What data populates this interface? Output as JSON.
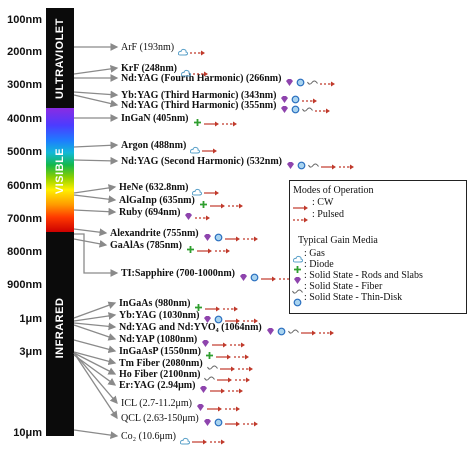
{
  "wavelength_axis": [
    "100nm",
    "200nm",
    "300nm",
    "400nm",
    "500nm",
    "600nm",
    "700nm",
    "800nm",
    "900nm",
    "1μm",
    "3μm",
    "10μm"
  ],
  "bands": {
    "ultraviolet": "ULTRAVIOLET",
    "visible": "VISIBLE",
    "infrared": "INFRARED"
  },
  "lasers": [
    {
      "label": "ArF (193nm)",
      "gain": [
        "gas"
      ],
      "modes": [
        "pulsed"
      ]
    },
    {
      "label": "KrF (248nm)",
      "gain": [
        "gas"
      ],
      "modes": [
        "pulsed"
      ]
    },
    {
      "label": "Nd:YAG (Fourth Harmonic) (266nm)",
      "gain": [
        "rods",
        "thindisk",
        "fiber"
      ],
      "modes": [
        "pulsed"
      ]
    },
    {
      "label": "Yb:YAG (Third Harmonic) (343nm)",
      "gain": [
        "rods",
        "thindisk"
      ],
      "modes": [
        "pulsed"
      ]
    },
    {
      "label": "Nd:YAG (Third Harmonic) (355nm)",
      "gain": [
        "rods",
        "thindisk",
        "fiber"
      ],
      "modes": [
        "pulsed"
      ]
    },
    {
      "label": "InGaN (405nm)",
      "gain": [
        "diode"
      ],
      "modes": [
        "cw",
        "pulsed"
      ]
    },
    {
      "label": "Argon (488nm)",
      "gain": [
        "gas"
      ],
      "modes": [
        "cw"
      ]
    },
    {
      "label": "Nd:YAG (Second Harmonic) (532nm)",
      "gain": [
        "rods",
        "thindisk",
        "fiber"
      ],
      "modes": [
        "cw",
        "pulsed"
      ]
    },
    {
      "label": "HeNe (632.8nm)",
      "gain": [
        "gas"
      ],
      "modes": [
        "cw"
      ]
    },
    {
      "label": "AlGaInp (635nm)",
      "gain": [
        "diode"
      ],
      "modes": [
        "cw",
        "pulsed"
      ]
    },
    {
      "label": "Ruby (694nm)",
      "gain": [
        "rods"
      ],
      "modes": [
        "pulsed"
      ]
    },
    {
      "label": "Alexandrite (755nm)",
      "gain": [
        "rods",
        "thindisk"
      ],
      "modes": [
        "cw",
        "pulsed"
      ]
    },
    {
      "label": "GaAlAs (785nm)",
      "gain": [
        "diode"
      ],
      "modes": [
        "cw",
        "pulsed"
      ]
    },
    {
      "label": "TI:Sapphire (700-1000nm)",
      "gain": [
        "rods",
        "thindisk"
      ],
      "modes": [
        "cw",
        "pulsed"
      ]
    },
    {
      "label": "InGaAs (980nm)",
      "gain": [
        "diode"
      ],
      "modes": [
        "cw",
        "pulsed"
      ]
    },
    {
      "label": "Yb:YAG (1030nm)",
      "gain": [
        "rods",
        "thindisk"
      ],
      "modes": [
        "cw",
        "pulsed"
      ]
    },
    {
      "label": "Nd:YAG and Nd:YVO₄ (1064nm)",
      "gain": [
        "rods",
        "thindisk",
        "fiber"
      ],
      "modes": [
        "cw",
        "pulsed"
      ]
    },
    {
      "label": "Nd:YAP (1080nm)",
      "gain": [
        "rods"
      ],
      "modes": [
        "cw",
        "pulsed"
      ]
    },
    {
      "label": "InGaAsP (1550nm)",
      "gain": [
        "diode"
      ],
      "modes": [
        "cw",
        "pulsed"
      ]
    },
    {
      "label": "Tm Fiber (2080nm)",
      "gain": [
        "fiber"
      ],
      "modes": [
        "cw",
        "pulsed"
      ]
    },
    {
      "label": "Ho Fiber (2100nm)",
      "gain": [
        "fiber"
      ],
      "modes": [
        "cw",
        "pulsed"
      ]
    },
    {
      "label": "Er:YAG (2.94μm)",
      "gain": [
        "rods"
      ],
      "modes": [
        "cw",
        "pulsed"
      ]
    },
    {
      "label": "ICL (2.7-11.2μm)",
      "gain": [
        "rods"
      ],
      "modes": [
        "cw",
        "pulsed"
      ]
    },
    {
      "label": "QCL (2.63-150μm)",
      "gain": [
        "rods",
        "thindisk"
      ],
      "modes": [
        "cw",
        "pulsed"
      ]
    },
    {
      "label": "Co₂ (10.6μm)",
      "gain": [
        "gas"
      ],
      "modes": [
        "cw",
        "pulsed"
      ]
    }
  ],
  "legend": {
    "modes_title": "Modes of Operation",
    "cw": ": CW",
    "pulsed": ": Pulsed",
    "gain_title": "Typical Gain Media",
    "gas": ": Gas",
    "diode": ": Diode",
    "rods": ": Solid State - Rods and Slabs",
    "fiber": ": Solid State - Fiber",
    "thindisk": ": Solid State - Thin-Disk"
  },
  "colors": {
    "arrow_gray": "#8a8a8a",
    "cw_arrow": "#c0392b",
    "diode_plus": "#2e9e2e",
    "rods_gem": "#8e44ad",
    "gas_cloud": "#5aa0c8",
    "thindisk_ring": "#2a6fbf",
    "fiber_wave": "#666666"
  }
}
